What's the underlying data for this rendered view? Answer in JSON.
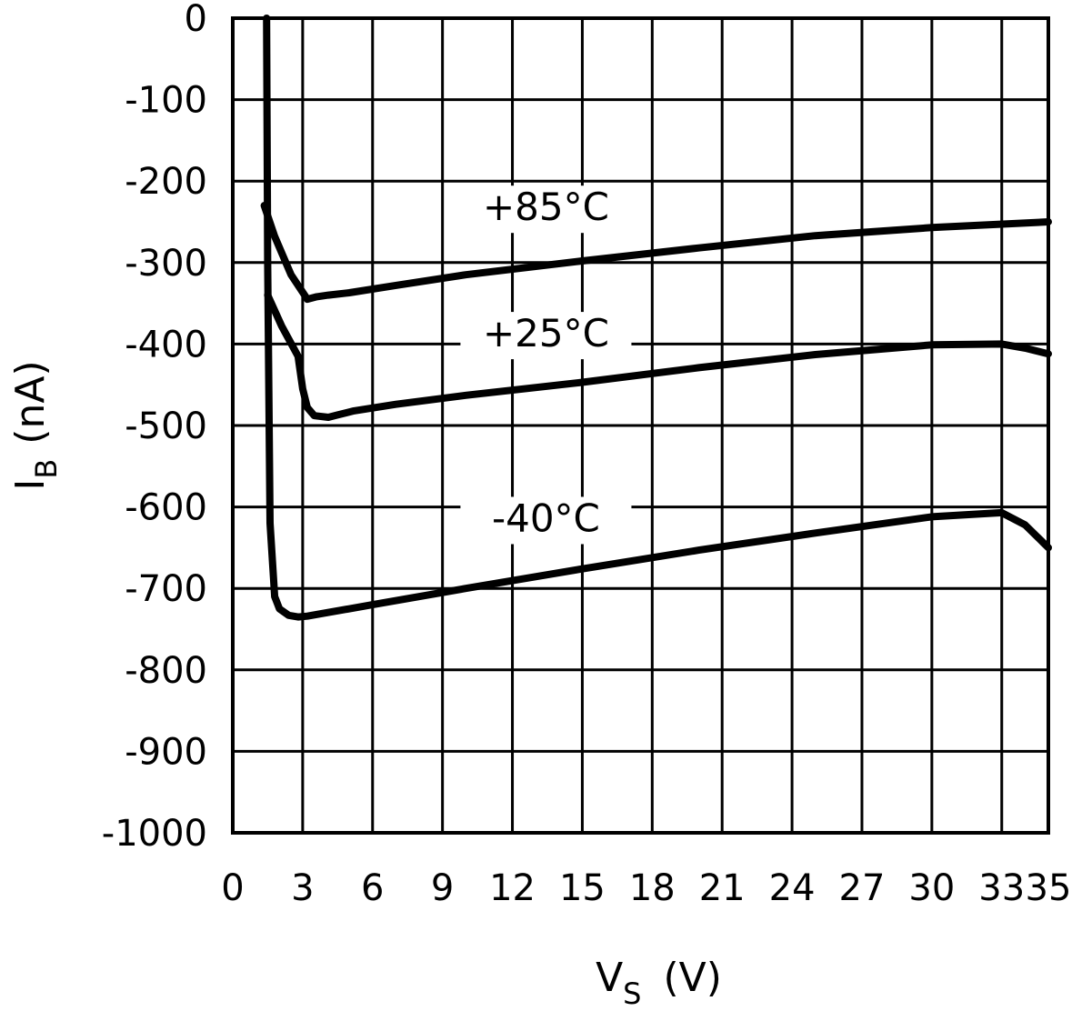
{
  "chart_data": {
    "type": "line",
    "xlabel": "V",
    "xlabel_sub": "S",
    "xlabel_unit": "(V)",
    "ylabel": "I",
    "ylabel_sub": "B",
    "ylabel_unit": "(nA)",
    "xlim": [
      0,
      35
    ],
    "ylim": [
      -1000,
      0
    ],
    "x_ticks": [
      0,
      3,
      6,
      9,
      12,
      15,
      18,
      21,
      24,
      27,
      30,
      33,
      35
    ],
    "x_tick_labels": [
      "0",
      "3",
      "6",
      "9",
      "12",
      "15",
      "18",
      "21",
      "24",
      "27",
      "30",
      "33",
      "35"
    ],
    "y_ticks": [
      0,
      -100,
      -200,
      -300,
      -400,
      -500,
      -600,
      -700,
      -800,
      -900,
      -1000
    ],
    "y_tick_labels": [
      "0",
      "-100",
      "-200",
      "-300",
      "-400",
      "-500",
      "-600",
      "-700",
      "-800",
      "-900",
      "-1000"
    ],
    "grid": true,
    "series": [
      {
        "name": "+85°C",
        "label": "+85°C",
        "label_at": [
          15,
          -248
        ],
        "x": [
          1.35,
          1.8,
          2.5,
          3.2,
          3.6,
          4.1,
          5,
          7,
          10,
          15,
          20,
          25,
          30,
          35
        ],
        "y": [
          -230,
          -268,
          -315,
          -345,
          -342,
          -340,
          -337,
          -328,
          -315,
          -298,
          -282,
          -267,
          -257,
          -250
        ]
      },
      {
        "name": "+25°C",
        "label": "+25°C",
        "label_at": [
          15,
          -403
        ],
        "x": [
          1.5,
          2.1,
          2.8,
          3.0,
          3.2,
          3.5,
          4.1,
          4.5,
          5.2,
          7,
          10,
          15,
          20,
          25,
          30,
          33,
          34,
          35
        ],
        "y": [
          -340,
          -378,
          -415,
          -455,
          -478,
          -488,
          -490,
          -487,
          -482,
          -474,
          -463,
          -447,
          -429,
          -413,
          -401,
          -400,
          -405,
          -412
        ]
      },
      {
        "name": "-40°C",
        "label": "-40°C",
        "label_at": [
          15,
          -630
        ],
        "x": [
          1.45,
          1.5,
          1.6,
          1.8,
          2.0,
          2.4,
          2.8,
          3.2,
          4,
          6,
          10,
          15,
          20,
          25,
          30,
          33,
          34,
          35
        ],
        "y": [
          0,
          -300,
          -620,
          -710,
          -725,
          -733,
          -735,
          -734,
          -730,
          -720,
          -700,
          -676,
          -653,
          -632,
          -612,
          -607,
          -622,
          -650
        ]
      }
    ]
  }
}
